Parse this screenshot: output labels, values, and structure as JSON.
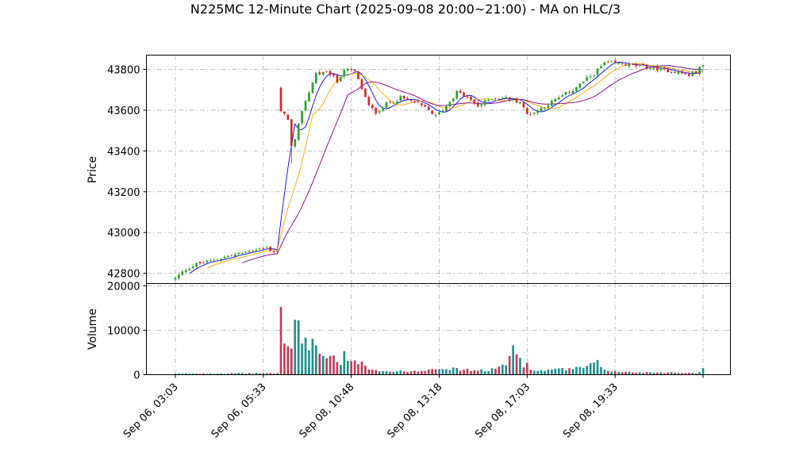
{
  "chart_data": {
    "type": "candlestick",
    "title": "N225MC 12-Minute Chart (2025-09-08 20:00~21:00) - MA on HLC/3",
    "price_panel": {
      "ylabel": "Price",
      "yticks": [
        42800,
        43000,
        43200,
        43400,
        43600,
        43800
      ],
      "ylim": [
        42750,
        43870
      ]
    },
    "volume_panel": {
      "ylabel": "Volume",
      "yticks": [
        0,
        10000,
        20000
      ],
      "ylim": [
        0,
        20500
      ]
    },
    "xtick_labels": [
      "Sep 06, 03:03",
      "Sep 06, 05:33",
      "Sep 08, 10:48",
      "Sep 08, 13:18",
      "Sep 08, 17:03",
      "Sep 08, 19:33"
    ],
    "xtick_index": [
      0,
      25,
      50,
      75,
      100,
      125
    ],
    "bar_count": 151,
    "grid": true,
    "up_color": "#2ca02c",
    "down_color": "#d62728",
    "ma_colors": [
      "#0000ff",
      "#ffa500",
      "#800080"
    ],
    "close_anchors": [
      [
        0,
        42775
      ],
      [
        3,
        42820
      ],
      [
        6,
        42845
      ],
      [
        10,
        42860
      ],
      [
        14,
        42880
      ],
      [
        18,
        42895
      ],
      [
        22,
        42915
      ],
      [
        26,
        42925
      ],
      [
        28,
        42905
      ],
      [
        29,
        42910
      ],
      [
        30,
        43590
      ],
      [
        32,
        43560
      ],
      [
        33,
        43420
      ],
      [
        34,
        43450
      ],
      [
        36,
        43600
      ],
      [
        40,
        43780
      ],
      [
        44,
        43780
      ],
      [
        46,
        43740
      ],
      [
        48,
        43800
      ],
      [
        51,
        43790
      ],
      [
        55,
        43620
      ],
      [
        57,
        43590
      ],
      [
        60,
        43630
      ],
      [
        64,
        43660
      ],
      [
        68,
        43640
      ],
      [
        72,
        43600
      ],
      [
        74,
        43570
      ],
      [
        77,
        43620
      ],
      [
        80,
        43690
      ],
      [
        83,
        43660
      ],
      [
        86,
        43620
      ],
      [
        90,
        43660
      ],
      [
        94,
        43660
      ],
      [
        98,
        43640
      ],
      [
        100,
        43580
      ],
      [
        102,
        43590
      ],
      [
        105,
        43620
      ],
      [
        109,
        43660
      ],
      [
        113,
        43700
      ],
      [
        116,
        43740
      ],
      [
        119,
        43780
      ],
      [
        122,
        43830
      ],
      [
        125,
        43830
      ],
      [
        130,
        43820
      ],
      [
        134,
        43810
      ],
      [
        138,
        43800
      ],
      [
        142,
        43790
      ],
      [
        146,
        43770
      ],
      [
        148,
        43790
      ],
      [
        150,
        43820
      ]
    ],
    "volume_anchors": [
      [
        0,
        250
      ],
      [
        28,
        350
      ],
      [
        29,
        300
      ],
      [
        30,
        19500
      ],
      [
        31,
        7500
      ],
      [
        32,
        5500
      ],
      [
        33,
        6000
      ],
      [
        34,
        13500
      ],
      [
        35,
        9500
      ],
      [
        36,
        8000
      ],
      [
        38,
        7000
      ],
      [
        39,
        7500
      ],
      [
        41,
        5000
      ],
      [
        43,
        4000
      ],
      [
        45,
        3500
      ],
      [
        47,
        2000
      ],
      [
        48,
        5200
      ],
      [
        49,
        2500
      ],
      [
        52,
        2800
      ],
      [
        53,
        3300
      ],
      [
        55,
        1500
      ],
      [
        58,
        900
      ],
      [
        62,
        700
      ],
      [
        70,
        900
      ],
      [
        74,
        1700
      ],
      [
        80,
        1200
      ],
      [
        88,
        900
      ],
      [
        94,
        2000
      ],
      [
        96,
        6300
      ],
      [
        99,
        2300
      ],
      [
        100,
        3600
      ],
      [
        101,
        900
      ],
      [
        108,
        1100
      ],
      [
        116,
        1500
      ],
      [
        120,
        2600
      ],
      [
        122,
        1200
      ],
      [
        126,
        600
      ],
      [
        140,
        500
      ],
      [
        148,
        400
      ],
      [
        150,
        1200
      ]
    ]
  }
}
